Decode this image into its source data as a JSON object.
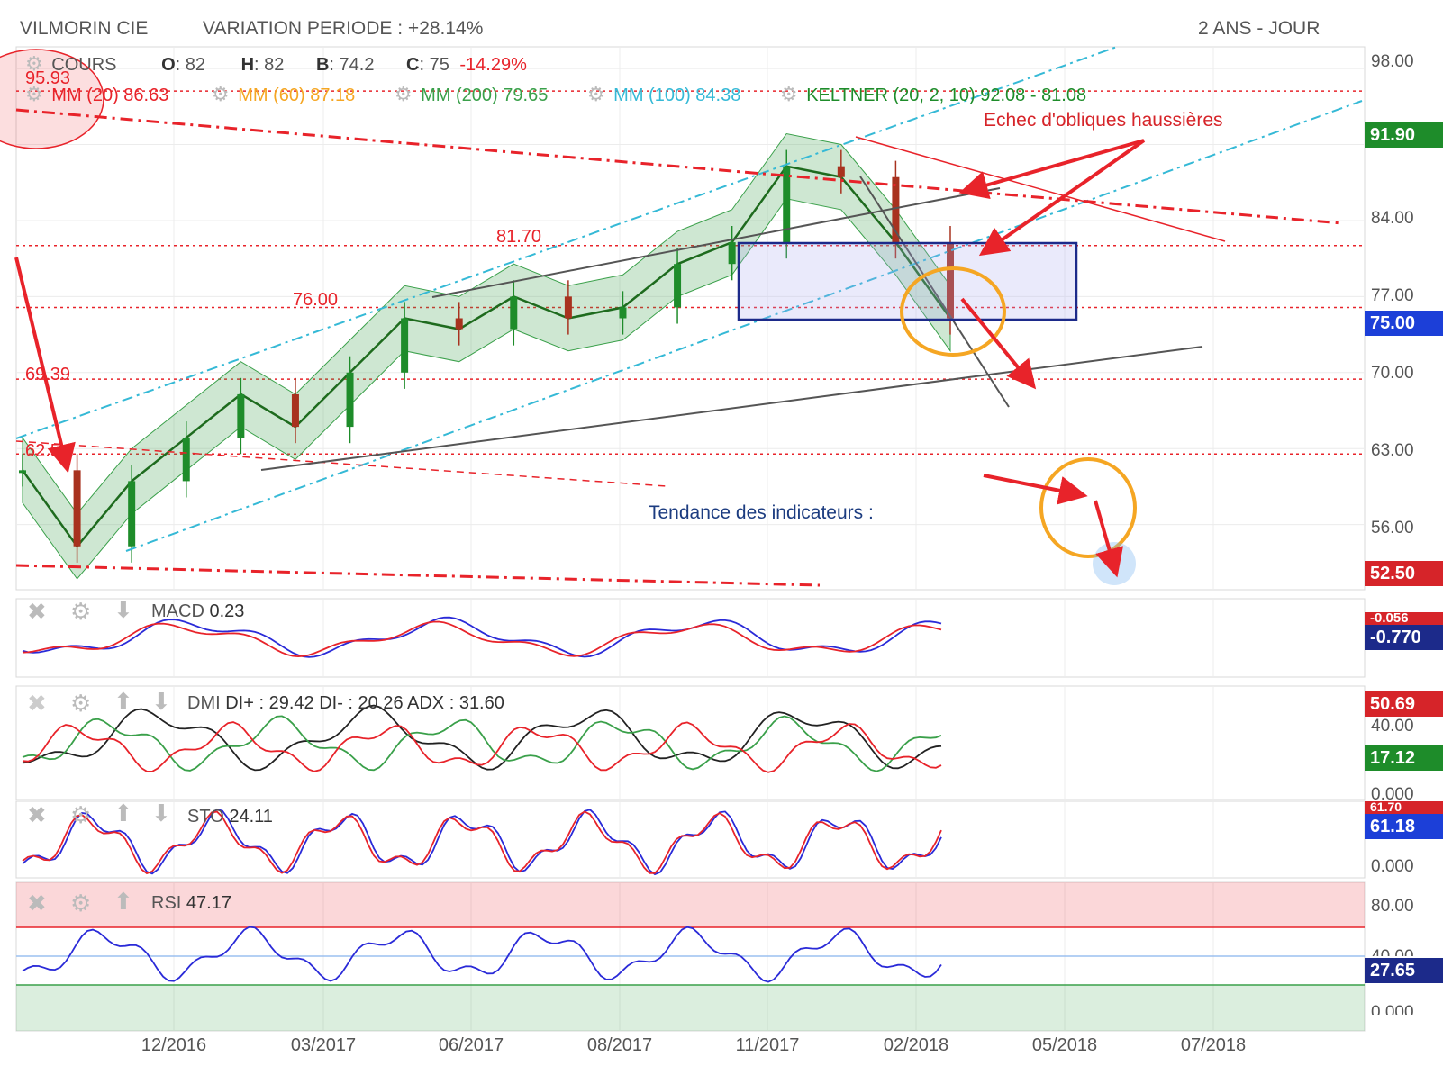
{
  "header": {
    "symbol": "VILMORIN CIE",
    "variation": "VARIATION PERIODE : +28.14%",
    "period": "2 ANS - JOUR"
  },
  "legend": {
    "cours": "COURS",
    "o_label": "O",
    "o_value": ": 82",
    "h_label": "H",
    "h_value": ": 82",
    "b_label": "B",
    "b_value": ": 74.2",
    "c_label": "C",
    "c_value": ": 75",
    "change": "-14.29%",
    "mm20": "MM (20) 86.63",
    "mm60": "MM (60) 87.18",
    "mm200": "MM (200) 79.65",
    "mm100": "MM (100) 84.38",
    "keltner": "KELTNER (20, 2, 10) 92.08 - 81.08"
  },
  "annotations": {
    "echec": "Echec d'obliques haussières",
    "tendance": "Tendance des indicateurs :",
    "lvl_9593": "95.93",
    "lvl_8170": "81.70",
    "lvl_7600": "76.00",
    "lvl_6939": "69.39",
    "lvl_625": "62.5"
  },
  "colors": {
    "red": "#e8232a",
    "orange": "#f5a623",
    "green": "#3aa04a",
    "cyan": "#35b9d6",
    "navy": "#1c2a8a",
    "badge_green": "#1e8c2a",
    "badge_red": "#d62429",
    "badge_blue": "#1c3fd8"
  },
  "price_axis": {
    "ticks": [
      "98.00",
      "84.00",
      "77.00",
      "70.00",
      "63.00",
      "56.00"
    ],
    "badges": [
      {
        "text": "91.90",
        "kind": "green"
      },
      {
        "text": "75.00",
        "kind": "blue"
      },
      {
        "text": "52.50",
        "kind": "red"
      }
    ]
  },
  "x_axis": [
    "12/2016",
    "03/2017",
    "06/2017",
    "08/2017",
    "11/2017",
    "02/2018",
    "05/2018",
    "07/2018"
  ],
  "macd": {
    "label": "MACD",
    "value": "0.23",
    "badge_top": "-0.056",
    "badge": "-0.770"
  },
  "dmi": {
    "label": "DMI",
    "values": "DI+ : 29.42 DI- : 20.26 ADX : 31.60",
    "tick_top": "40.00",
    "tick_bottom": "0.000",
    "badge_red": "50.69",
    "badge_green": "17.12"
  },
  "sto": {
    "label": "STO",
    "value": "24.11",
    "badge_top": "61.70",
    "badge": "61.18",
    "tick_bottom": "0.000"
  },
  "rsi": {
    "label": "RSI",
    "value": "47.17",
    "tick_top": "80.00",
    "tick_mid": "40.00",
    "tick_bottom": "0.000",
    "badge": "27.65"
  },
  "chart_data": {
    "type": "candlestick",
    "title": "VILMORIN CIE",
    "ylim": [
      50,
      100
    ],
    "close_path": [
      [
        "10/2016",
        61
      ],
      [
        "11/2016",
        54
      ],
      [
        "12/2016",
        60
      ],
      [
        "01/2017",
        64
      ],
      [
        "02/2017",
        68
      ],
      [
        "03/2017",
        65
      ],
      [
        "04/2017",
        70
      ],
      [
        "05/2017",
        75
      ],
      [
        "06/2017",
        74
      ],
      [
        "07/2017",
        77
      ],
      [
        "08/2017",
        75
      ],
      [
        "09/2017",
        76
      ],
      [
        "10/2017",
        80
      ],
      [
        "11/2017",
        82
      ],
      [
        "12/2017",
        89
      ],
      [
        "01/2018",
        88
      ],
      [
        "02/2018",
        82
      ],
      [
        "02/2018",
        75
      ]
    ],
    "levels": [
      95.93,
      81.7,
      76.0,
      69.39,
      62.5
    ],
    "last": {
      "open": 82,
      "high": 82,
      "low": 74.2,
      "close": 75,
      "change_pct": -14.29
    }
  }
}
